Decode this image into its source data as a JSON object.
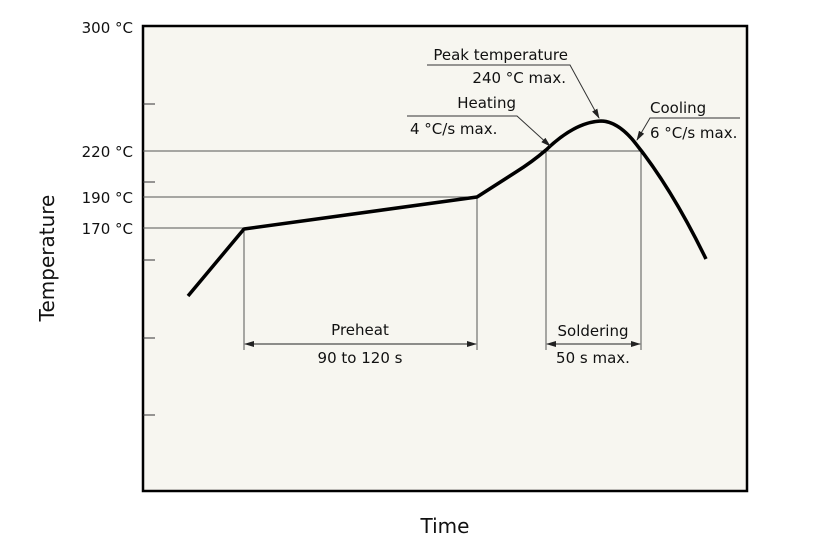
{
  "diagram": {
    "y_axis_label": "Temperature",
    "x_axis_label": "Time",
    "y_ticks": [
      "300 °C",
      "220 °C",
      "190 °C",
      "170 °C"
    ],
    "annotations": {
      "peak_title": "Peak temperature",
      "peak_value": "240 °C max.",
      "heating_title": "Heating",
      "heating_value": "4 °C/s max.",
      "cooling_title": "Cooling",
      "cooling_value": "6 °C/s max.",
      "preheat_title": "Preheat",
      "preheat_value": "90 to 120 s",
      "soldering_title": "Soldering",
      "soldering_value": "50 s max."
    },
    "colors": {
      "background": "#f7f6f0",
      "line": "#000000"
    }
  }
}
